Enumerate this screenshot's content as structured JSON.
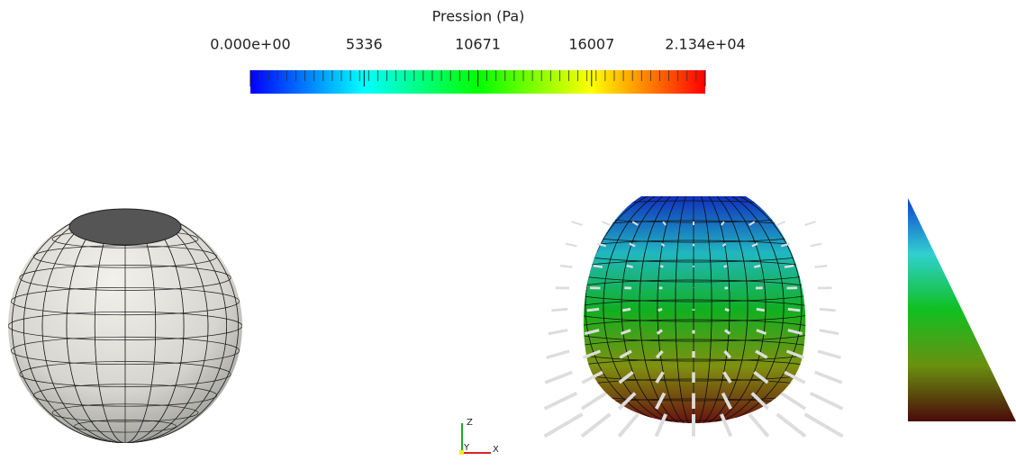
{
  "colorbar": {
    "title": "Pression (Pa)",
    "range": [
      0,
      21340
    ],
    "ticks": [
      {
        "value": 0,
        "label": "0.000e+00"
      },
      5336,
      10671,
      16007,
      {
        "value": 21340,
        "label": "2.134e+04"
      }
    ]
  },
  "orientation_axes": {
    "z": "Z",
    "y": "Y",
    "x": "X"
  }
}
